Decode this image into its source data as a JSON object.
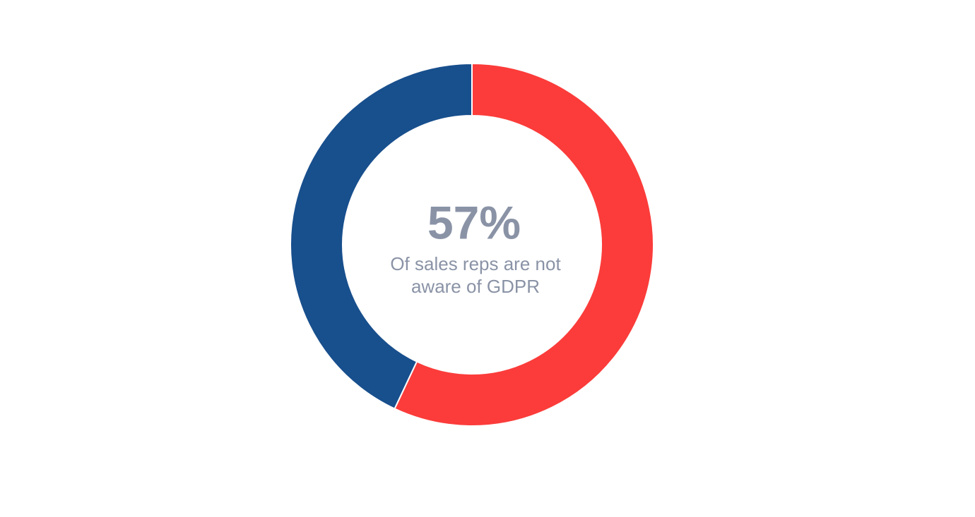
{
  "chart_data": {
    "type": "donut",
    "values": [
      57,
      43
    ],
    "value_labels": [
      "57%",
      null
    ],
    "colors": [
      "#fb3c3a",
      "#184f8d"
    ],
    "caption": [
      "Of sales reps are not",
      "aware of GDPR"
    ]
  }
}
